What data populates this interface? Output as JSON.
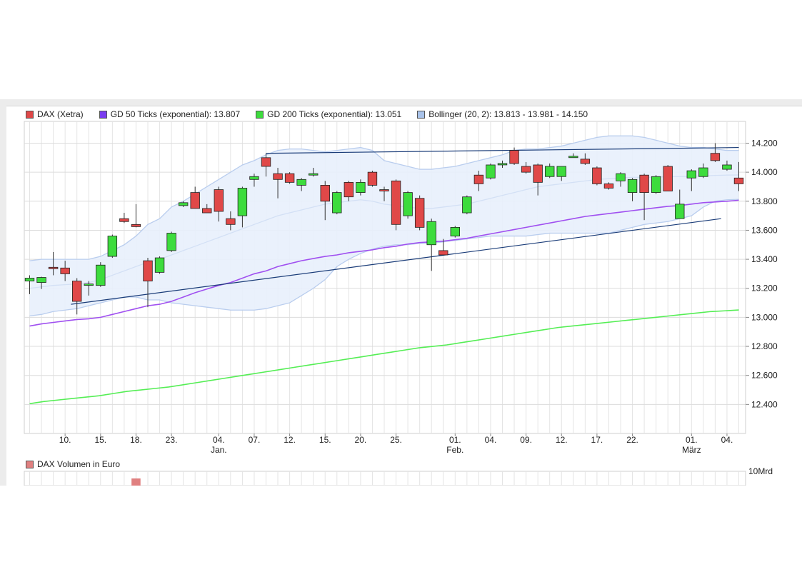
{
  "legend": [
    {
      "label": "DAX (Xetra)",
      "color": "#e04848"
    },
    {
      "label": "GD 50 Ticks (exponential): 13.807",
      "color": "#7a3cf0"
    },
    {
      "label": "GD 200 Ticks (exponential): 13.051",
      "color": "#3ddc3d"
    },
    {
      "label": "Bollinger (20, 2): 13.813 - 13.981 - 14.150",
      "color": "#a9c3ea"
    }
  ],
  "volume_legend": {
    "label": "DAX Volumen in Euro",
    "color": "#e08080"
  },
  "volume_axis_label": "10Mrd",
  "colors": {
    "up": "#3ddc3d",
    "down": "#e04848",
    "ema50": "#a050f0",
    "ema200": "#55ee55",
    "band_fill": "#e8effc",
    "band_line": "#b9cdee",
    "trend": "#1a3c78"
  },
  "chart_data": {
    "type": "candlestick",
    "y_ticks": [
      "14.200",
      "14.000",
      "13.800",
      "13.600",
      "13.400",
      "13.200",
      "13.000",
      "12.800",
      "12.600",
      "12.400"
    ],
    "y_range": [
      12200,
      14350
    ],
    "x_labels": [
      {
        "i": 3,
        "label": "10."
      },
      {
        "i": 6,
        "label": "15."
      },
      {
        "i": 9,
        "label": "18."
      },
      {
        "i": 12,
        "label": "23."
      },
      {
        "i": 16,
        "label": "04.",
        "sub": "Jan."
      },
      {
        "i": 19,
        "label": "07."
      },
      {
        "i": 22,
        "label": "12."
      },
      {
        "i": 25,
        "label": "15."
      },
      {
        "i": 28,
        "label": "20."
      },
      {
        "i": 31,
        "label": "25."
      },
      {
        "i": 36,
        "label": "01.",
        "sub": "Feb."
      },
      {
        "i": 39,
        "label": "04."
      },
      {
        "i": 42,
        "label": "09."
      },
      {
        "i": 45,
        "label": "12."
      },
      {
        "i": 48,
        "label": "17."
      },
      {
        "i": 51,
        "label": "22."
      },
      {
        "i": 56,
        "label": "01.",
        "sub": "März"
      },
      {
        "i": 59,
        "label": "04."
      }
    ],
    "candles": [
      {
        "o": 13250,
        "h": 13290,
        "l": 13160,
        "c": 13270
      },
      {
        "o": 13240,
        "h": 13280,
        "l": 13195,
        "c": 13275
      },
      {
        "o": 13345,
        "h": 13450,
        "l": 13290,
        "c": 13340
      },
      {
        "o": 13340,
        "h": 13390,
        "l": 13250,
        "c": 13300
      },
      {
        "o": 13250,
        "h": 13270,
        "l": 13020,
        "c": 13110
      },
      {
        "o": 13225,
        "h": 13250,
        "l": 13150,
        "c": 13230
      },
      {
        "o": 13220,
        "h": 13380,
        "l": 13210,
        "c": 13360
      },
      {
        "o": 13420,
        "h": 13570,
        "l": 13410,
        "c": 13560
      },
      {
        "o": 13680,
        "h": 13720,
        "l": 13650,
        "c": 13660
      },
      {
        "o": 13640,
        "h": 13780,
        "l": 13620,
        "c": 13625
      },
      {
        "o": 13390,
        "h": 13410,
        "l": 13070,
        "c": 13250
      },
      {
        "o": 13310,
        "h": 13420,
        "l": 13300,
        "c": 13410
      },
      {
        "o": 13460,
        "h": 13590,
        "l": 13450,
        "c": 13580
      },
      {
        "o": 13770,
        "h": 13800,
        "l": 13760,
        "c": 13790
      },
      {
        "o": 13860,
        "h": 13900,
        "l": 13750,
        "c": 13750
      },
      {
        "o": 13750,
        "h": 13780,
        "l": 13720,
        "c": 13720
      },
      {
        "o": 13880,
        "h": 13900,
        "l": 13660,
        "c": 13730
      },
      {
        "o": 13680,
        "h": 13730,
        "l": 13600,
        "c": 13640
      },
      {
        "o": 13700,
        "h": 13900,
        "l": 13620,
        "c": 13890
      },
      {
        "o": 13950,
        "h": 13990,
        "l": 13900,
        "c": 13970
      },
      {
        "o": 14100,
        "h": 14130,
        "l": 13970,
        "c": 14040
      },
      {
        "o": 13990,
        "h": 14030,
        "l": 13820,
        "c": 13950
      },
      {
        "o": 13990,
        "h": 14000,
        "l": 13920,
        "c": 13930
      },
      {
        "o": 13910,
        "h": 13960,
        "l": 13870,
        "c": 13950
      },
      {
        "o": 13980,
        "h": 14030,
        "l": 13970,
        "c": 13990
      },
      {
        "o": 13910,
        "h": 13940,
        "l": 13670,
        "c": 13800
      },
      {
        "o": 13720,
        "h": 13870,
        "l": 13710,
        "c": 13860
      },
      {
        "o": 13930,
        "h": 13940,
        "l": 13800,
        "c": 13830
      },
      {
        "o": 13860,
        "h": 13950,
        "l": 13840,
        "c": 13930
      },
      {
        "o": 14000,
        "h": 14010,
        "l": 13900,
        "c": 13910
      },
      {
        "o": 13880,
        "h": 13900,
        "l": 13800,
        "c": 13870
      },
      {
        "o": 13940,
        "h": 13950,
        "l": 13600,
        "c": 13640
      },
      {
        "o": 13700,
        "h": 13870,
        "l": 13680,
        "c": 13860
      },
      {
        "o": 13820,
        "h": 13840,
        "l": 13600,
        "c": 13620
      },
      {
        "o": 13500,
        "h": 13680,
        "l": 13320,
        "c": 13660
      },
      {
        "o": 13460,
        "h": 13540,
        "l": 13430,
        "c": 13430
      },
      {
        "o": 13560,
        "h": 13630,
        "l": 13550,
        "c": 13620
      },
      {
        "o": 13720,
        "h": 13840,
        "l": 13710,
        "c": 13830
      },
      {
        "o": 13980,
        "h": 14010,
        "l": 13870,
        "c": 13920
      },
      {
        "o": 13960,
        "h": 14060,
        "l": 13950,
        "c": 14050
      },
      {
        "o": 14060,
        "h": 14080,
        "l": 14030,
        "c": 14060
      },
      {
        "o": 14150,
        "h": 14170,
        "l": 14050,
        "c": 14060
      },
      {
        "o": 14040,
        "h": 14070,
        "l": 13990,
        "c": 14000
      },
      {
        "o": 14050,
        "h": 14060,
        "l": 13840,
        "c": 13930
      },
      {
        "o": 13970,
        "h": 14060,
        "l": 13960,
        "c": 14040
      },
      {
        "o": 13970,
        "h": 14040,
        "l": 13940,
        "c": 14040
      },
      {
        "o": 14110,
        "h": 14130,
        "l": 14100,
        "c": 14110
      },
      {
        "o": 14090,
        "h": 14130,
        "l": 14050,
        "c": 14060
      },
      {
        "o": 14030,
        "h": 14040,
        "l": 13910,
        "c": 13920
      },
      {
        "o": 13920,
        "h": 13930,
        "l": 13880,
        "c": 13890
      },
      {
        "o": 13940,
        "h": 14000,
        "l": 13900,
        "c": 13990
      },
      {
        "o": 13860,
        "h": 13960,
        "l": 13800,
        "c": 13950
      },
      {
        "o": 13980,
        "h": 13990,
        "l": 13670,
        "c": 13860
      },
      {
        "o": 13860,
        "h": 13980,
        "l": 13850,
        "c": 13970
      },
      {
        "o": 14040,
        "h": 14050,
        "l": 13870,
        "c": 13870
      },
      {
        "o": 13680,
        "h": 13880,
        "l": 13680,
        "c": 13780
      },
      {
        "o": 13960,
        "h": 14020,
        "l": 13870,
        "c": 14010
      },
      {
        "o": 13970,
        "h": 14060,
        "l": 13960,
        "c": 14030
      },
      {
        "o": 14130,
        "h": 14200,
        "l": 14070,
        "c": 14080
      },
      {
        "o": 14020,
        "h": 14080,
        "l": 14010,
        "c": 14050
      },
      {
        "o": 13960,
        "h": 14070,
        "l": 13870,
        "c": 13920
      }
    ],
    "ema50": [
      12940,
      12955,
      12965,
      12975,
      12985,
      12990,
      13000,
      13020,
      13040,
      13060,
      13080,
      13090,
      13110,
      13140,
      13170,
      13195,
      13220,
      13240,
      13270,
      13300,
      13320,
      13350,
      13370,
      13390,
      13405,
      13420,
      13430,
      13445,
      13455,
      13465,
      13480,
      13490,
      13505,
      13515,
      13520,
      13525,
      13535,
      13545,
      13560,
      13575,
      13590,
      13605,
      13620,
      13635,
      13650,
      13665,
      13680,
      13695,
      13705,
      13715,
      13725,
      13735,
      13745,
      13755,
      13765,
      13770,
      13780,
      13790,
      13795,
      13800,
      13807
    ],
    "ema200": [
      12405,
      12420,
      12430,
      12440,
      12450,
      12460,
      12475,
      12490,
      12500,
      12510,
      12520,
      12535,
      12550,
      12565,
      12580,
      12595,
      12610,
      12625,
      12640,
      12655,
      12670,
      12685,
      12700,
      12715,
      12730,
      12745,
      12760,
      12775,
      12790,
      12800,
      12810,
      12825,
      12840,
      12855,
      12870,
      12885,
      12900,
      12915,
      12930,
      12940,
      12950,
      12960,
      12970,
      12980,
      12990,
      13000,
      13010,
      13020,
      13030,
      13040,
      13045,
      13051
    ],
    "bollinger_upper": [
      13390,
      13400,
      13400,
      13400,
      13400,
      13400,
      13420,
      13460,
      13500,
      13560,
      13640,
      13680,
      13760,
      13800,
      13850,
      13900,
      13950,
      14000,
      14050,
      14080,
      14120,
      14150,
      14160,
      14160,
      14150,
      14140,
      14150,
      14160,
      14170,
      14150,
      14080,
      14060,
      14040,
      14020,
      14020,
      14030,
      14040,
      14060,
      14080,
      14100,
      14120,
      14150,
      14160,
      14160,
      14170,
      14180,
      14200,
      14220,
      14240,
      14250,
      14250,
      14250,
      14240,
      14220,
      14200,
      14180,
      14170,
      14170,
      14160,
      14150,
      14150
    ],
    "bollinger_middle": [
      13200,
      13210,
      13220,
      13225,
      13230,
      13240,
      13260,
      13290,
      13320,
      13350,
      13380,
      13400,
      13430,
      13460,
      13490,
      13520,
      13550,
      13580,
      13610,
      13640,
      13670,
      13700,
      13720,
      13740,
      13760,
      13780,
      13790,
      13800,
      13810,
      13800,
      13780,
      13770,
      13760,
      13750,
      13750,
      13760,
      13770,
      13780,
      13800,
      13820,
      13840,
      13860,
      13880,
      13900,
      13910,
      13920,
      13930,
      13940,
      13950,
      13955,
      13960,
      13965,
      13965,
      13965,
      13970,
      13970,
      13972,
      13975,
      13978,
      13980,
      13981
    ],
    "bollinger_lower": [
      13010,
      13020,
      13040,
      13050,
      13060,
      13080,
      13100,
      13120,
      13140,
      13140,
      13120,
      13120,
      13100,
      13090,
      13080,
      13070,
      13060,
      13050,
      13050,
      13050,
      13060,
      13080,
      13100,
      13150,
      13200,
      13260,
      13350,
      13400,
      13440,
      13470,
      13490,
      13500,
      13500,
      13510,
      13510,
      13520,
      13530,
      13540,
      13550,
      13560,
      13560,
      13560,
      13560,
      13570,
      13580,
      13580,
      13580,
      13580,
      13580,
      13580,
      13600,
      13620,
      13640,
      13650,
      13660,
      13680,
      13700,
      13760,
      13800,
      13810,
      13813
    ],
    "trendlines": [
      {
        "from": {
          "i": 20,
          "v": 14130
        },
        "to": {
          "i": 60,
          "v": 14170
        }
      },
      {
        "from": {
          "i": 3.5,
          "v": 13090
        },
        "to": {
          "i": 58.5,
          "v": 13680
        }
      }
    ]
  }
}
